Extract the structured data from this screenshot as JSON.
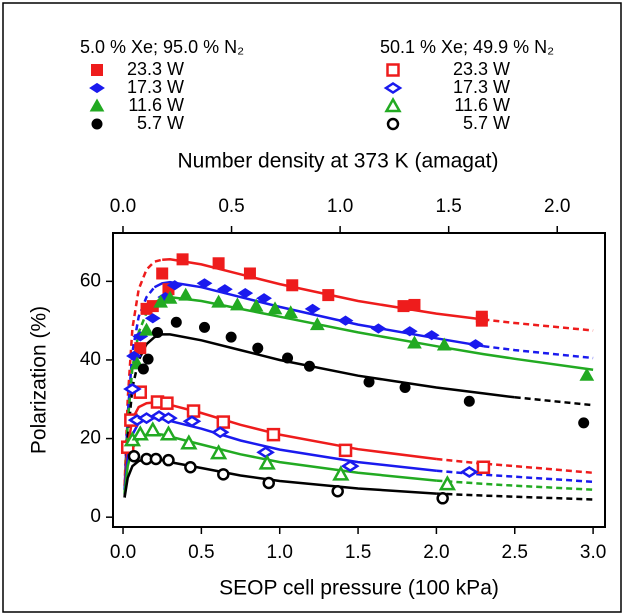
{
  "chart_data": {
    "type": "scatter",
    "xlabel": "SEOP cell pressure (100 kPa)",
    "ylabel": "Polarization (%)",
    "x2label": "Number density at 373 K (amagat)",
    "xlim": [
      -0.064,
      3.076
    ],
    "xticks": [
      {
        "value": 0,
        "label": "0.0"
      },
      {
        "value": 0.5,
        "label": "0.5"
      },
      {
        "value": 1,
        "label": "1.0"
      },
      {
        "value": 1.5,
        "label": "1.5"
      },
      {
        "value": 2,
        "label": "2.0"
      },
      {
        "value": 2.5,
        "label": "2.5"
      },
      {
        "value": 3,
        "label": "3.0"
      }
    ],
    "x2lim": [
      -0.046,
      2.22
    ],
    "x2ticks": [
      {
        "value": 0,
        "label": "0.0"
      },
      {
        "value": 0.5,
        "label": "0.5"
      },
      {
        "value": 1,
        "label": "1.0"
      },
      {
        "value": 1.5,
        "label": "1.5"
      },
      {
        "value": 2,
        "label": "2.0"
      }
    ],
    "ylim": [
      -2.5,
      72.3
    ],
    "yticks": [
      0,
      20,
      40,
      60
    ],
    "fit_x": [
      0.01,
      0.03,
      0.06,
      0.1,
      0.15,
      0.2,
      0.25,
      0.3,
      0.5,
      0.75,
      1.0,
      1.5,
      2.0,
      2.3,
      2.5,
      3.0
    ],
    "series_groups": [
      {
        "title": "5.0 % Xe; 95.0 % N₂",
        "filled": true,
        "series": [
          {
            "name": "23.3 W",
            "color": "#ee1c1c",
            "marker": "square",
            "x": [
              0.11,
              0.15,
              0.19,
              0.25,
              0.29,
              0.38,
              0.61,
              0.81,
              1.08,
              1.31,
              1.79,
              1.86,
              2.29,
              2.29
            ],
            "values": [
              43,
              53,
              53.7,
              62,
              58,
              65.6,
              64.6,
              62,
              59,
              56.5,
              53.7,
              54,
              51,
              50
            ],
            "fit_solid": [
              null,
              null,
              null,
              null,
              null,
              null,
              65.5,
              65.6,
              64.3,
              61.8,
              59.3,
              55,
              51.8,
              50.3,
              null,
              null
            ],
            "fit_dashed": [
              8,
              30,
              48,
              58,
              63,
              65,
              65.5,
              null,
              null,
              null,
              null,
              null,
              null,
              50.3,
              49.4,
              47.5
            ]
          },
          {
            "name": "17.3 W",
            "color": "#1a1aee",
            "marker": "diamond",
            "x": [
              0.07,
              0.11,
              0.19,
              0.27,
              0.33,
              0.52,
              0.65,
              0.78,
              0.9,
              1.21,
              1.42,
              1.63,
              1.83,
              1.97,
              2.25
            ],
            "values": [
              41,
              46,
              50.6,
              56,
              59,
              59.5,
              58,
              57,
              55.7,
              53,
              50,
              48,
              47.3,
              46.3,
              44
            ],
            "fit_solid": [
              null,
              null,
              null,
              null,
              null,
              58.5,
              59.5,
              59.8,
              58.5,
              56,
              53.5,
              49,
              45.5,
              43.5,
              null,
              null
            ],
            "fit_dashed": [
              7,
              26,
              42,
              51,
              56,
              58.5,
              null,
              null,
              null,
              null,
              null,
              null,
              null,
              43.5,
              42.5,
              40.5
            ]
          },
          {
            "name": "11.6 W",
            "color": "#22aa22",
            "marker": "triangle",
            "x": [
              0.09,
              0.15,
              0.24,
              0.3,
              0.4,
              0.61,
              0.73,
              0.85,
              0.97,
              1.07,
              1.24,
              1.86,
              2.05,
              2.96
            ],
            "values": [
              39,
              47.6,
              54.7,
              55.7,
              56.5,
              54.7,
              54,
              53.7,
              53,
              52,
              49,
              44.3,
              43.8,
              36.1
            ],
            "fit_solid": [
              null,
              null,
              null,
              null,
              52,
              54.5,
              55.8,
              56,
              55,
              53,
              51,
              47,
              43.5,
              41.5,
              40.3,
              37.5
            ],
            "fit_dashed": [
              6,
              24,
              38,
              47,
              52,
              null,
              null,
              null,
              null,
              null,
              null,
              null,
              null,
              null,
              null,
              null
            ]
          },
          {
            "name": "5.7 W",
            "color": "#000000",
            "marker": "circle",
            "x": [
              0.13,
              0.16,
              0.22,
              0.34,
              0.52,
              0.69,
              0.86,
              1.05,
              1.19,
              1.57,
              1.8,
              2.21,
              2.94
            ],
            "values": [
              37.7,
              40.2,
              47,
              49.6,
              48.3,
              45.8,
              43,
              40.5,
              38.4,
              34.4,
              33,
              29.5,
              24
            ],
            "fit_solid": [
              null,
              null,
              null,
              null,
              44,
              45.8,
              46.5,
              46.5,
              45,
              42.5,
              40,
              36,
              33,
              31.5,
              30.5,
              null
            ],
            "fit_dashed": [
              5,
              20,
              33,
              40,
              44,
              null,
              null,
              null,
              null,
              null,
              null,
              null,
              null,
              null,
              30.5,
              28.5
            ]
          }
        ]
      },
      {
        "title": "50.1 % Xe; 49.9 % N₂",
        "filled": false,
        "series": [
          {
            "name": "23.3 W",
            "color": "#ee1c1c",
            "marker": "square",
            "x": [
              0.03,
              0.05,
              0.11,
              0.22,
              0.28,
              0.45,
              0.64,
              0.96,
              1.42,
              2.3
            ],
            "values": [
              17.8,
              24.7,
              31.8,
              29.3,
              29,
              27,
              24.2,
              21,
              17,
              12.7
            ],
            "fit_solid": [
              8,
              18,
              25,
              28,
              29,
              29.2,
              29,
              28.6,
              26.5,
              23.5,
              21,
              17.3,
              14.8,
              null,
              null,
              null
            ],
            "fit_dashed": [
              null,
              null,
              null,
              null,
              null,
              null,
              null,
              null,
              null,
              null,
              null,
              null,
              14.8,
              13.6,
              13,
              11.3
            ]
          },
          {
            "name": "17.3 W",
            "color": "#1a1aee",
            "marker": "diamond",
            "x": [
              0.06,
              0.09,
              0.15,
              0.23,
              0.29,
              0.44,
              0.62,
              0.91,
              1.45,
              2.21
            ],
            "values": [
              32.6,
              24.7,
              25.2,
              25.7,
              25.2,
              24.4,
              21.6,
              16.5,
              13,
              11.5
            ],
            "fit_solid": [
              7,
              15,
              21,
              24,
              25,
              25.2,
              25,
              24.5,
              22.5,
              19.5,
              17.2,
              14,
              11.8,
              null,
              null,
              null
            ],
            "fit_dashed": [
              null,
              null,
              null,
              null,
              null,
              null,
              null,
              null,
              null,
              null,
              null,
              null,
              11.8,
              10.8,
              10.3,
              9
            ]
          },
          {
            "name": "11.6 W",
            "color": "#22aa22",
            "marker": "triangle",
            "x": [
              0.06,
              0.11,
              0.19,
              0.29,
              0.42,
              0.61,
              0.92,
              1.39,
              2.07
            ],
            "values": [
              19.6,
              21.1,
              22.1,
              21.1,
              18.8,
              16.3,
              13.7,
              10.9,
              8.4
            ],
            "fit_solid": [
              6,
              13,
              17.5,
              20,
              21,
              21.2,
              21,
              20.5,
              18.5,
              16,
              14,
              11.3,
              9.3,
              null,
              null,
              null
            ],
            "fit_dashed": [
              null,
              null,
              null,
              null,
              null,
              null,
              null,
              null,
              null,
              null,
              null,
              null,
              9.3,
              8.5,
              8,
              7
            ]
          },
          {
            "name": "5.7 W",
            "color": "#000000",
            "marker": "circle",
            "x": [
              0.07,
              0.15,
              0.21,
              0.29,
              0.43,
              0.64,
              0.93,
              1.37,
              2.04
            ],
            "values": [
              15.5,
              14.8,
              14.8,
              14.5,
              12.7,
              10.9,
              8.7,
              6.6,
              4.8
            ],
            "fit_solid": [
              5,
              10,
              13,
              14.3,
              14.8,
              14.8,
              14.5,
              14,
              12.5,
              10.6,
              9.2,
              7.3,
              6,
              null,
              null,
              null
            ],
            "fit_dashed": [
              null,
              null,
              null,
              null,
              null,
              null,
              null,
              null,
              null,
              null,
              null,
              null,
              6,
              5.5,
              5.2,
              4.5
            ]
          }
        ]
      }
    ]
  }
}
